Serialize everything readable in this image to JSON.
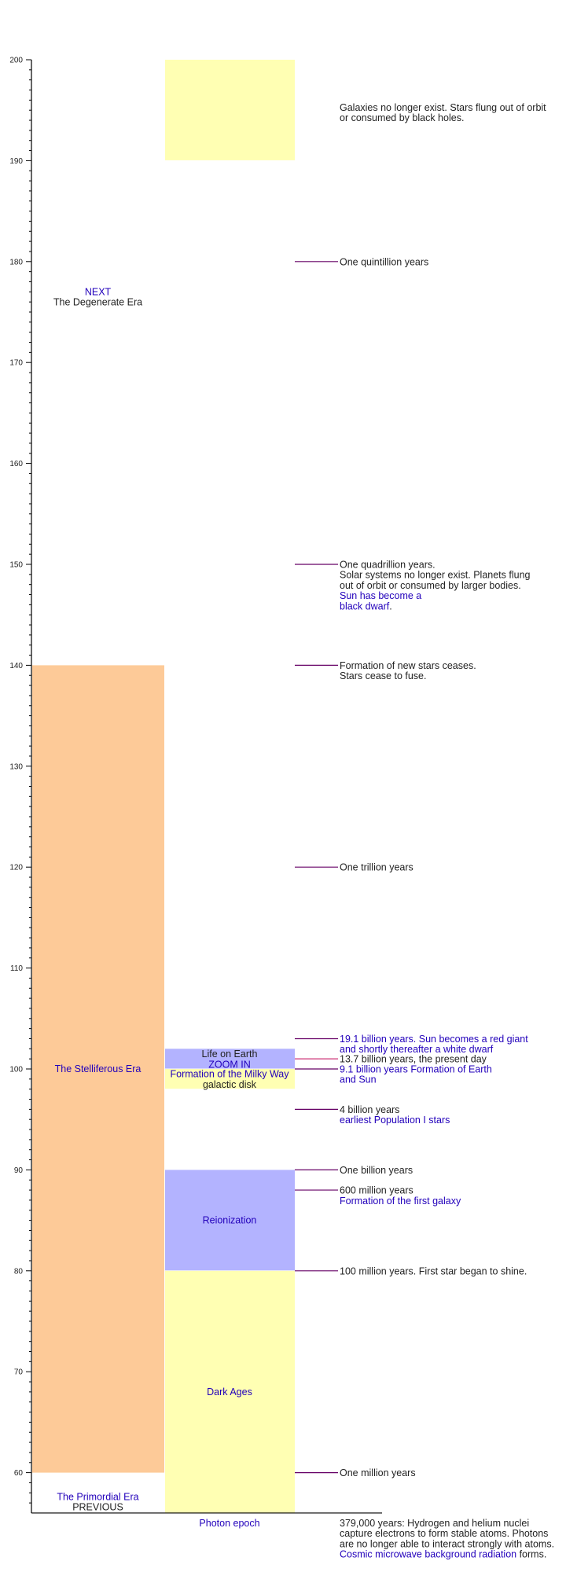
{
  "colors": {
    "peach": "#fdca98",
    "yellow": "#ffffb3",
    "blue": "#b3b3ff",
    "text": "#222222",
    "link": "#2200bb",
    "event_line": "#660066",
    "present_line": "#cc3377"
  },
  "chart_data": {
    "type": "timeline",
    "ylim": [
      56,
      200
    ],
    "yticks": [
      60,
      70,
      80,
      90,
      100,
      110,
      120,
      130,
      140,
      150,
      160,
      170,
      180,
      190,
      200
    ],
    "left_column": [
      {
        "from": 60,
        "to": 140,
        "color": "#fdca98",
        "lines": [
          [
            {
              "text": "The Stelliferous Era",
              "link": true
            }
          ]
        ]
      },
      {
        "label_at": 177,
        "lines": [
          [
            {
              "text": "NEXT",
              "link": true
            }
          ],
          [
            {
              "text": "The Degenerate Era",
              "link": false
            }
          ]
        ]
      },
      {
        "label_at": 57.6,
        "lines": [
          [
            {
              "text": "The Primordial Era",
              "link": true
            }
          ],
          [
            {
              "text": "PREVIOUS",
              "link": false
            }
          ]
        ]
      }
    ],
    "middle_column": [
      {
        "from": 190,
        "to": 200,
        "color": "#ffffb3",
        "lines": []
      },
      {
        "from": 100,
        "to": 102,
        "color": "#b3b3ff",
        "lines": [
          [
            {
              "text": "Life on Earth",
              "link": false
            }
          ],
          [
            {
              "text": "ZOOM  IN",
              "link": true
            }
          ]
        ]
      },
      {
        "from": 98,
        "to": 100,
        "color": "#ffffb3",
        "lines": [
          [
            {
              "text": "Formation of the Milky Way",
              "link": true
            }
          ],
          [
            {
              "text": "galactic disk",
              "link": false
            }
          ]
        ]
      },
      {
        "from": 80,
        "to": 90,
        "color": "#b3b3ff",
        "lines": [
          [
            {
              "text": "Reionization",
              "link": true
            }
          ]
        ]
      },
      {
        "from": 56,
        "to": 80,
        "color": "#ffffb3",
        "lines": [
          [
            {
              "text": "Dark Ages",
              "link": true
            }
          ]
        ]
      }
    ],
    "x_label": [
      {
        "text": "Photon epoch",
        "link": true
      }
    ],
    "events": [
      {
        "value": 180,
        "present": false,
        "lines": [
          [
            {
              "text": "One quintillion years",
              "link": false
            }
          ]
        ]
      },
      {
        "value": 150,
        "present": false,
        "lines": [
          [
            {
              "text": "One quadrillion years.",
              "link": false
            }
          ],
          [
            {
              "text": "Solar systems no longer exist. Planets flung",
              "link": false
            }
          ],
          [
            {
              "text": "out of orbit or consumed by larger bodies.",
              "link": false
            }
          ],
          [
            {
              "text": "Sun has become a",
              "link": true
            }
          ],
          [
            {
              "text": "black dwarf",
              "link": true
            },
            {
              "text": ".",
              "link": false
            }
          ]
        ]
      },
      {
        "value": 140,
        "present": false,
        "lines": [
          [
            {
              "text": "Formation of new stars ceases.",
              "link": false
            }
          ],
          [
            {
              "text": "Stars cease to fuse.",
              "link": false
            }
          ]
        ]
      },
      {
        "value": 120,
        "present": false,
        "lines": [
          [
            {
              "text": "One trillion years",
              "link": false
            }
          ]
        ]
      },
      {
        "value": 103,
        "present": false,
        "lines": [
          [
            {
              "text": "19.1 billion years. Sun becomes a red giant",
              "link": true
            }
          ],
          [
            {
              "text": "and shortly thereafter a white dwarf",
              "link": true
            }
          ]
        ]
      },
      {
        "value": 101,
        "present": true,
        "lines": [
          [
            {
              "text": "13.7 billion years, the present day",
              "link": false
            }
          ]
        ]
      },
      {
        "value": 100,
        "present": false,
        "lines": [
          [
            {
              "text": "9.1 billion years Formation of Earth",
              "link": true
            }
          ],
          [
            {
              "text": "and Sun",
              "link": true
            }
          ]
        ]
      },
      {
        "value": 96,
        "present": false,
        "lines": [
          [
            {
              "text": "4 billion years",
              "link": false
            }
          ],
          [
            {
              "text": "earliest  Population I stars",
              "link": true
            }
          ]
        ]
      },
      {
        "value": 90,
        "present": false,
        "lines": [
          [
            {
              "text": "One billion years",
              "link": false
            }
          ]
        ]
      },
      {
        "value": 88,
        "present": false,
        "lines": [
          [
            {
              "text": "600 million years",
              "link": false
            }
          ],
          [
            {
              "text": "Formation of the first galaxy",
              "link": true
            }
          ]
        ]
      },
      {
        "value": 80,
        "present": false,
        "lines": [
          [
            {
              "text": "100 million years. First star began to shine.",
              "link": false
            }
          ]
        ]
      },
      {
        "value": 60,
        "present": false,
        "lines": [
          [
            {
              "text": "One million years",
              "link": false
            }
          ]
        ]
      }
    ],
    "notes": [
      {
        "value": 195.3,
        "lines": [
          [
            {
              "text": "Galaxies no longer exist. Stars flung out of orbit",
              "link": false
            }
          ],
          [
            {
              "text": "or consumed by black holes.",
              "link": false
            }
          ]
        ]
      },
      {
        "value": 55,
        "lines": [
          [
            {
              "text": "379,000 years: Hydrogen and helium nuclei",
              "link": false
            }
          ],
          [
            {
              "text": "capture electrons to form stable atoms. Photons",
              "link": false
            }
          ],
          [
            {
              "text": "are no longer able to interact strongly with atoms.",
              "link": false
            }
          ],
          [
            {
              "text": "Cosmic microwave background radiation",
              "link": true
            },
            {
              "text": " forms.",
              "link": false
            }
          ]
        ]
      }
    ]
  }
}
